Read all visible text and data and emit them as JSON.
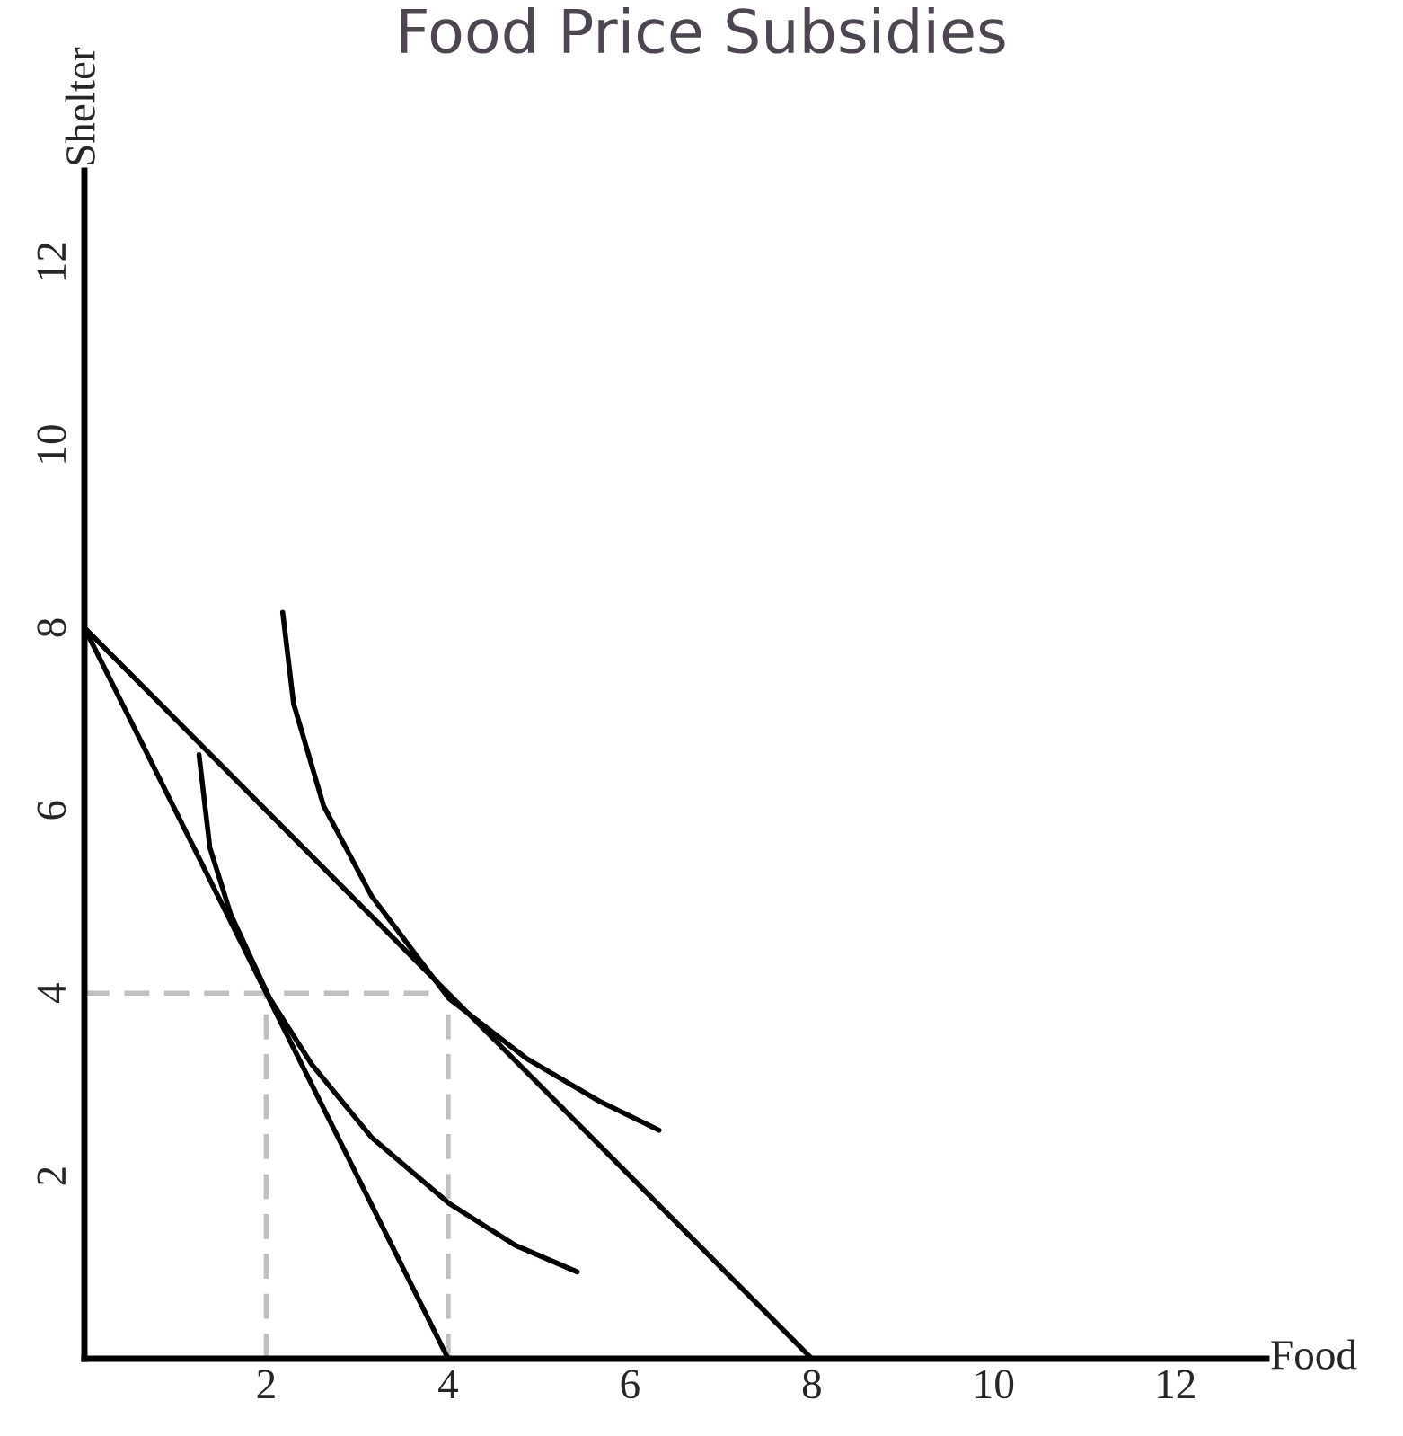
{
  "chart_data": {
    "type": "line",
    "title": "Food Price Subsidies",
    "xlabel": "Food",
    "ylabel": "Shelter",
    "xlim": [
      0,
      13
    ],
    "ylim": [
      0,
      13
    ],
    "xticks": [
      2,
      4,
      6,
      8,
      10,
      12
    ],
    "yticks": [
      2,
      4,
      6,
      8,
      10,
      12
    ],
    "grid": false,
    "marker": "none",
    "series": [
      {
        "color": "#000000",
        "line_style": "solid",
        "x": [
          0,
          4
        ],
        "values": [
          8,
          0
        ]
      },
      {
        "color": "#000000",
        "line_style": "solid",
        "x": [
          0,
          8
        ],
        "values": [
          8,
          0
        ]
      },
      {
        "color": "#000000",
        "line_style": "solid",
        "x": [
          1.26,
          1.38,
          1.61,
          2.04,
          2.5,
          3.16,
          4.01,
          4.74,
          5.42
        ],
        "values": [
          6.61,
          5.59,
          4.86,
          3.94,
          3.22,
          2.42,
          1.7,
          1.24,
          0.95
        ]
      },
      {
        "color": "#000000",
        "line_style": "solid",
        "x": [
          2.18,
          2.3,
          2.63,
          3.16,
          4.01,
          4.87,
          5.66,
          6.32
        ],
        "values": [
          8.17,
          7.17,
          6.05,
          5.06,
          3.94,
          3.28,
          2.82,
          2.5
        ]
      },
      {
        "color": "#c0c0c0",
        "line_style": "dashed",
        "x": [
          0,
          4
        ],
        "values": [
          4,
          4
        ]
      },
      {
        "color": "#c0c0c0",
        "line_style": "dashed",
        "x": [
          2,
          2
        ],
        "values": [
          0,
          4
        ]
      },
      {
        "color": "#c0c0c0",
        "line_style": "dashed",
        "x": [
          4,
          4
        ],
        "values": [
          0,
          4
        ]
      }
    ]
  }
}
